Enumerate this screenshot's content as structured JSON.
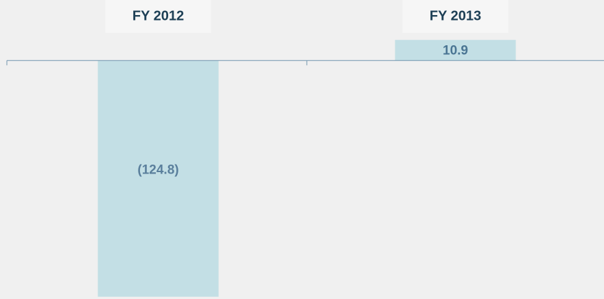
{
  "chart_data": {
    "type": "bar",
    "categories": [
      "FY 2012",
      "FY 2013"
    ],
    "values": [
      -124.8,
      10.9
    ],
    "value_labels": [
      "(124.8)",
      "10.9"
    ],
    "color": "#c3dfe5",
    "ylim": [
      -126,
      32
    ]
  }
}
